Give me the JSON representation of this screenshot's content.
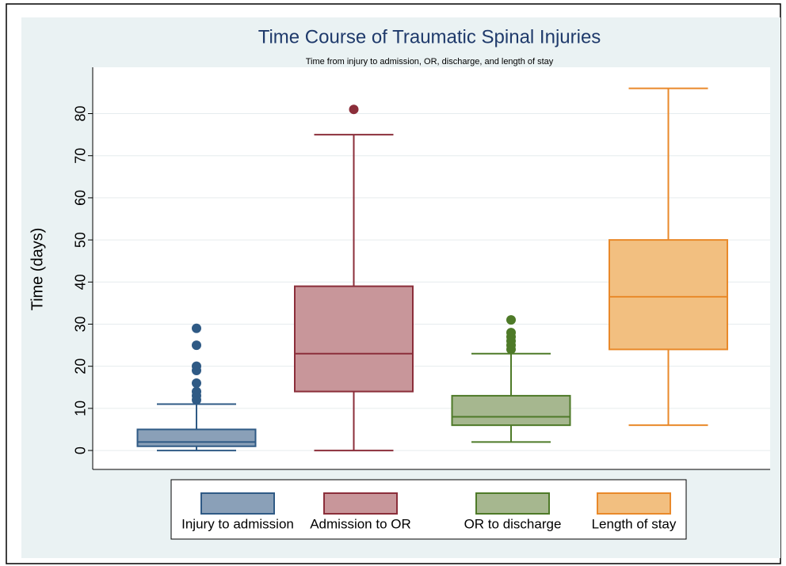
{
  "chart_data": {
    "type": "box",
    "title": "Time Course of Traumatic Spinal Injuries",
    "subtitle": "Time from injury to admission, OR, discharge, and length of stay",
    "y_label": "Time (days)",
    "ylim": [
      -4.5,
      91
    ],
    "yticks": [
      0,
      10,
      20,
      30,
      40,
      50,
      60,
      70,
      80
    ],
    "grid": true,
    "series": [
      {
        "name": "Injury to admission",
        "color": "#2f5a85",
        "fill": "#8aa0b8",
        "whisker_low": 0,
        "q1": 1,
        "median": 2,
        "q3": 5,
        "whisker_high": 11,
        "outliers": [
          12,
          13,
          14,
          16,
          19,
          20,
          25,
          29
        ]
      },
      {
        "name": "Admission to OR",
        "color": "#8b2e3a",
        "fill": "#c8969a",
        "whisker_low": 0,
        "q1": 14,
        "median": 23,
        "q3": 39,
        "whisker_high": 75,
        "outliers": [
          81
        ]
      },
      {
        "name": "OR to discharge",
        "color": "#4e7a28",
        "fill": "#a6b78f",
        "whisker_low": 2,
        "q1": 6,
        "median": 8,
        "q3": 13,
        "whisker_high": 23,
        "outliers": [
          24,
          25,
          26,
          27,
          28,
          31
        ]
      },
      {
        "name": "Length of stay",
        "color": "#e9892a",
        "fill": "#f2bf80",
        "whisker_low": 6,
        "q1": 24,
        "median": 36.5,
        "q3": 50,
        "whisker_high": 86,
        "outliers": []
      }
    ]
  }
}
